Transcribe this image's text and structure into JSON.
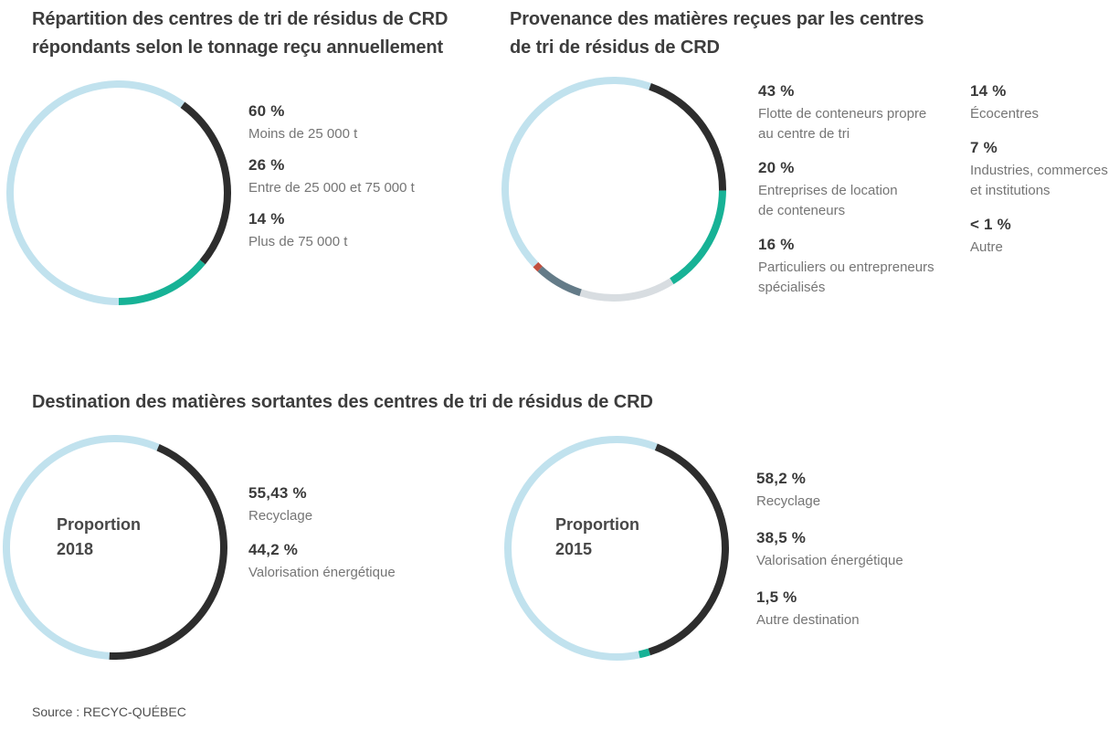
{
  "page": {
    "source": "Source : RECYC-QUÉBEC"
  },
  "palette": {
    "pale_blue": "#c1e2ee",
    "charcoal": "#2d2d2d",
    "teal": "#17b296",
    "light_gray": "#d8dde1",
    "slate": "#647b88",
    "brick": "#c14f3f"
  },
  "sections": {
    "destination_title": "Destination des matières sortantes des centres de tri de résidus de CRD"
  },
  "chart_data": [
    {
      "type": "donut",
      "title": "Répartition des centres de tri de résidus de CRD\nrépondants selon le tonnage reçu annuellement",
      "legend_position": "right",
      "start_angle": 180,
      "segments": [
        {
          "value": 60,
          "display": "60 %",
          "label": "Moins de 25 000 t",
          "color_key": "pale_blue"
        },
        {
          "value": 26,
          "display": "26 %",
          "label": "Entre de 25 000 et 75 000 t",
          "color_key": "charcoal"
        },
        {
          "value": 14,
          "display": "14 %",
          "label": "Plus de 75 000 t",
          "color_key": "teal"
        }
      ]
    },
    {
      "type": "donut",
      "title": "Provenance des matières reçues par les centres\nde tri de résidus de CRD",
      "legend_position": "right-two-columns",
      "start_angle": 226,
      "segments": [
        {
          "value": 43,
          "display": "43 %",
          "label": "Flotte de conteneurs propre\nau centre de tri",
          "color_key": "pale_blue"
        },
        {
          "value": 20,
          "display": "20 %",
          "label": "Entreprises de location\nde conteneurs",
          "color_key": "charcoal"
        },
        {
          "value": 16,
          "display": "16 %",
          "label": "Particuliers ou entrepreneurs\nspécialisés",
          "color_key": "teal"
        },
        {
          "value": 14,
          "display": "14 %",
          "label": "Écocentres",
          "color_key": "light_gray"
        },
        {
          "value": 7,
          "display": "7 %",
          "label": "Industries, commerces\net institutions",
          "color_key": "slate"
        },
        {
          "value": 0.9,
          "display": "< 1 %",
          "label": "Autre",
          "color_key": "brick"
        }
      ]
    },
    {
      "type": "donut",
      "center_label_line1": "Proportion",
      "center_label_line2": "2018",
      "legend_position": "right",
      "start_angle": 183,
      "segments": [
        {
          "value": 55.43,
          "display": "55,43 %",
          "label": "Recyclage",
          "color_key": "pale_blue"
        },
        {
          "value": 44.2,
          "display": "44,2 %",
          "label": "Valorisation énergétique",
          "color_key": "charcoal"
        }
      ]
    },
    {
      "type": "donut",
      "center_label_line1": "Proportion",
      "center_label_line2": "2015",
      "legend_position": "right",
      "start_angle": 168,
      "segments": [
        {
          "value": 58.2,
          "display": "58,2 %",
          "label": "Recyclage",
          "color_key": "pale_blue"
        },
        {
          "value": 38.5,
          "display": "38,5 %",
          "label": "Valorisation énergétique",
          "color_key": "charcoal"
        },
        {
          "value": 1.5,
          "display": "1,5 %",
          "label": "Autre destination",
          "color_key": "teal"
        }
      ]
    }
  ]
}
